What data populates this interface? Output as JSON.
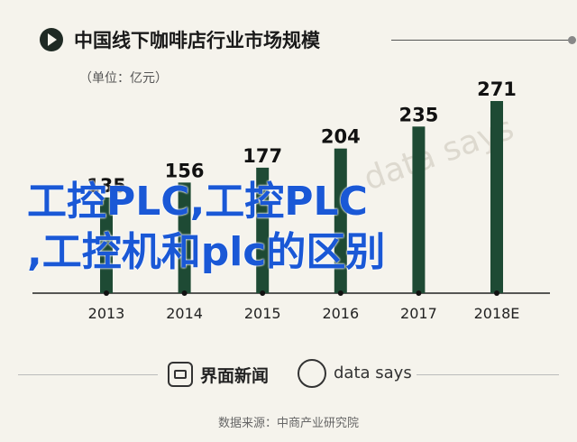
{
  "title": "中国线下咖啡店行业市场规模",
  "unit_label": "（单位：亿元）",
  "overlay": {
    "line1": "工控PLC,工控PLC",
    "line2": ",工控机和plc的区别"
  },
  "watermark": "data says",
  "footer": {
    "brand_1": "界面新闻",
    "brand_2": "data says",
    "source": "数据来源：中商产业研究院"
  },
  "colors": {
    "bar": "#1e4a34",
    "background": "#f5f3ec",
    "overlay_text": "#1a58d6"
  },
  "chart_data": {
    "type": "bar",
    "title": "中国线下咖啡店行业市场规模",
    "ylabel": "（单位：亿元）",
    "categories": [
      "2013",
      "2014",
      "2015",
      "2016",
      "2017",
      "2018E"
    ],
    "values": [
      135,
      156,
      177,
      204,
      235,
      271
    ],
    "ylim": [
      0,
      271
    ],
    "grid": false,
    "legend": "none",
    "data_labels": [
      "135",
      "156",
      "177",
      "204",
      "235",
      "271"
    ]
  }
}
